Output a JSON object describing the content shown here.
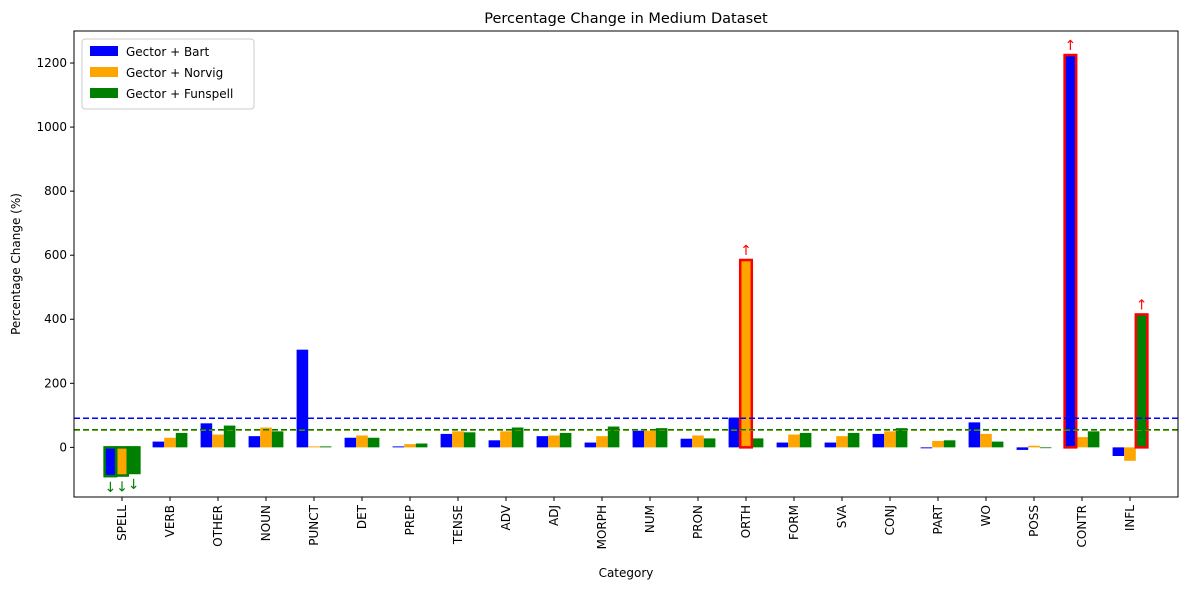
{
  "chart_data": {
    "type": "bar",
    "title": "Percentage Change in Medium Dataset",
    "xlabel": "Category",
    "ylabel": "Percentage Change (%)",
    "ylim": [
      -155,
      1300
    ],
    "yticks": [
      0,
      200,
      400,
      600,
      800,
      1000,
      1200
    ],
    "grid": false,
    "legend_position": "top-left",
    "categories": [
      "SPELL",
      "VERB",
      "OTHER",
      "NOUN",
      "PUNCT",
      "DET",
      "PREP",
      "TENSE",
      "ADV",
      "ADJ",
      "MORPH",
      "NUM",
      "PRON",
      "ORTH",
      "FORM",
      "SVA",
      "CONJ",
      "PART",
      "WO",
      "POSS",
      "CONTR",
      "INFL"
    ],
    "series": [
      {
        "name": "Gector + Bart",
        "color": "#0000ff",
        "values": [
          -90,
          18,
          75,
          35,
          305,
          30,
          3,
          42,
          22,
          35,
          15,
          52,
          27,
          93,
          15,
          15,
          42,
          -3,
          78,
          -8,
          1225,
          -27
        ]
      },
      {
        "name": "Gector + Norvig",
        "color": "#ffa500",
        "values": [
          -88,
          30,
          40,
          62,
          3,
          37,
          10,
          50,
          50,
          37,
          35,
          52,
          37,
          585,
          40,
          35,
          50,
          20,
          42,
          5,
          32,
          -42
        ]
      },
      {
        "name": "Gector + Funspell",
        "color": "#008000",
        "values": [
          -80,
          45,
          68,
          50,
          3,
          30,
          12,
          47,
          62,
          45,
          65,
          60,
          28,
          28,
          45,
          45,
          60,
          22,
          18,
          0,
          50,
          415
        ]
      }
    ],
    "reference_lines": [
      {
        "value": 91,
        "color": "#0000ff"
      },
      {
        "value": 54,
        "color": "#ffa500"
      },
      {
        "value": 55,
        "color": "#008000"
      }
    ],
    "highlights": [
      {
        "category": "SPELL",
        "series": 0,
        "direction": "down",
        "edge": "#008000"
      },
      {
        "category": "SPELL",
        "series": 1,
        "direction": "down",
        "edge": "#008000"
      },
      {
        "category": "SPELL",
        "series": 2,
        "direction": "down",
        "edge": "#008000"
      },
      {
        "category": "ORTH",
        "series": 1,
        "direction": "up",
        "edge": "#ff0000"
      },
      {
        "category": "CONTR",
        "series": 0,
        "direction": "up",
        "edge": "#ff0000"
      },
      {
        "category": "INFL",
        "series": 2,
        "direction": "up",
        "edge": "#ff0000"
      }
    ],
    "arrow_up": "↑",
    "arrow_down": "↓"
  }
}
